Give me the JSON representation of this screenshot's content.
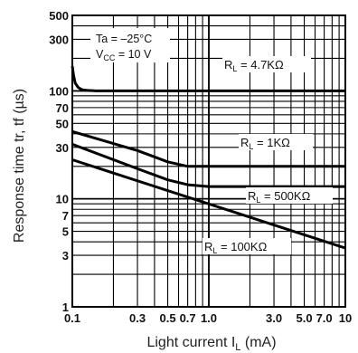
{
  "chart_data": {
    "type": "line",
    "title": "",
    "xlabel": "Light current I",
    "xlabel_sub": "L",
    "xlabel_unit": " (mA)",
    "ylabel": "Response time tr, tf (µs)",
    "x_scale": "log",
    "y_scale": "log",
    "xlim": [
      0.1,
      10
    ],
    "ylim": [
      1,
      500
    ],
    "grid": true,
    "x_tick_labels": [
      {
        "value": 0.1,
        "label": "0.1"
      },
      {
        "value": 0.3,
        "label": "0.3"
      },
      {
        "value": 0.5,
        "label": "0.5"
      },
      {
        "value": 0.7,
        "label": "0.7"
      },
      {
        "value": 1.0,
        "label": "1.0"
      },
      {
        "value": 3.0,
        "label": "3.0"
      },
      {
        "value": 5.0,
        "label": "5.0"
      },
      {
        "value": 7.0,
        "label": "7.0"
      },
      {
        "value": 10,
        "label": "10"
      }
    ],
    "y_tick_labels": [
      {
        "value": 1,
        "label": "1"
      },
      {
        "value": 3,
        "label": "3"
      },
      {
        "value": 5,
        "label": "5"
      },
      {
        "value": 7,
        "label": "7"
      },
      {
        "value": 10,
        "label": "10"
      },
      {
        "value": 30,
        "label": "30"
      },
      {
        "value": 50,
        "label": "50"
      },
      {
        "value": 70,
        "label": "70"
      },
      {
        "value": 100,
        "label": "100"
      },
      {
        "value": 300,
        "label": "300"
      },
      {
        "value": 500,
        "label": "500"
      }
    ],
    "conditions": {
      "line1": "Ta = –25°C",
      "line2_main": "V",
      "line2_sub": "CC",
      "line2_rest": " = 10 V"
    },
    "series": [
      {
        "label_main": "R",
        "label_sub": "L",
        "label_rest": " = 4.7KΩ",
        "x": [
          0.1,
          0.102,
          0.105,
          0.11,
          0.115,
          0.12,
          0.13,
          0.15,
          0.2,
          0.5,
          1,
          5,
          10
        ],
        "values": [
          170,
          140,
          118,
          108,
          104,
          102,
          101,
          100,
          100,
          100,
          100,
          100,
          100
        ]
      },
      {
        "label_main": "R",
        "label_sub": "L",
        "label_rest": " = 1KΩ",
        "x": [
          0.1,
          0.3,
          0.5,
          0.7,
          1,
          3,
          10
        ],
        "values": [
          42,
          28,
          22,
          20,
          20,
          20,
          20
        ]
      },
      {
        "label_main": "R",
        "label_sub": "L",
        "label_rest": " = 500KΩ",
        "x": [
          0.1,
          0.3,
          0.5,
          0.7,
          1,
          3,
          10
        ],
        "values": [
          32,
          19,
          15,
          13.5,
          13,
          13,
          13
        ]
      },
      {
        "label_main": "R",
        "label_sub": "L",
        "label_rest": " = 100KΩ",
        "x": [
          0.1,
          10
        ],
        "values": [
          23,
          3.5
        ]
      }
    ]
  }
}
